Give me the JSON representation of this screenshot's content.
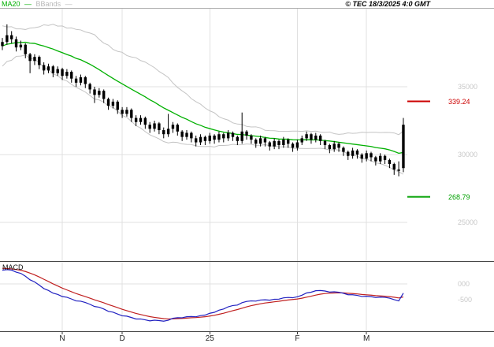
{
  "header": {
    "legend": {
      "ma20": "MA20",
      "bbands": "BBands",
      "dash": "—"
    },
    "copyright": "© TEC 18/3/2025 4:0 GMT"
  },
  "colors": {
    "ma20": "#00b000",
    "bbands": "#c4c4c4",
    "candle": "#000000",
    "macd": "#2020c0",
    "macd_signal": "#c02020",
    "grid": "#e0e0e0",
    "axis_text": "#c8c8c8",
    "resistance": "#cc0000",
    "support": "#00a000"
  },
  "chart_data": {
    "type": "candlestick",
    "title": "",
    "legend_entries": [
      "MA20",
      "BBands"
    ],
    "ylim": [
      244,
      408
    ],
    "price_panel": {
      "y_gridlines": [
        {
          "price": 350,
          "label": "35000"
        },
        {
          "price": 300,
          "label": "30000"
        },
        {
          "price": 250,
          "label": "25000"
        }
      ],
      "levels": [
        {
          "price": 339.24,
          "label": "339.24",
          "color": "#cc0000"
        },
        {
          "price": 268.79,
          "label": "268.79",
          "color": "#00a000"
        }
      ],
      "ma_period": 20,
      "band_mult": 2,
      "band_warmup_closes": [
        362,
        374,
        366,
        379,
        371,
        383,
        375,
        387,
        379,
        389,
        381,
        391,
        383,
        389,
        379,
        387,
        377,
        385,
        381
      ],
      "candles_ohlc": [
        [
          380,
          386,
          377,
          383
        ],
        [
          383,
          396,
          381,
          388
        ],
        [
          388,
          391,
          382,
          385
        ],
        [
          385,
          387,
          376,
          379
        ],
        [
          379,
          384,
          377,
          381
        ],
        [
          381,
          382,
          371,
          374
        ],
        [
          374,
          375,
          360,
          369
        ],
        [
          369,
          374,
          366,
          372
        ],
        [
          372,
          373,
          363,
          366
        ],
        [
          366,
          368,
          359,
          362
        ],
        [
          362,
          367,
          360,
          365
        ],
        [
          365,
          366,
          357,
          360
        ],
        [
          360,
          365,
          358,
          363
        ],
        [
          363,
          364,
          355,
          358
        ],
        [
          358,
          363,
          356,
          361
        ],
        [
          361,
          362,
          353,
          356
        ],
        [
          356,
          358,
          350,
          353
        ],
        [
          353,
          359,
          351,
          357
        ],
        [
          357,
          358,
          349,
          352
        ],
        [
          352,
          353,
          345,
          348
        ],
        [
          348,
          350,
          338,
          344
        ],
        [
          344,
          349,
          342,
          347
        ],
        [
          347,
          348,
          338,
          341
        ],
        [
          341,
          342,
          333,
          336
        ],
        [
          336,
          341,
          334,
          339
        ],
        [
          339,
          340,
          330,
          333
        ],
        [
          333,
          335,
          327,
          330
        ],
        [
          330,
          335,
          328,
          333
        ],
        [
          333,
          334,
          324,
          327
        ],
        [
          327,
          329,
          321,
          324
        ],
        [
          324,
          329,
          322,
          327
        ],
        [
          327,
          328,
          319,
          322
        ],
        [
          322,
          324,
          316,
          319
        ],
        [
          319,
          325,
          317,
          323
        ],
        [
          323,
          324,
          315,
          318
        ],
        [
          318,
          320,
          312,
          315
        ],
        [
          315,
          330,
          313,
          319
        ],
        [
          319,
          324,
          316,
          322
        ],
        [
          322,
          323,
          314,
          317
        ],
        [
          317,
          318,
          310,
          313
        ],
        [
          313,
          318,
          311,
          316
        ],
        [
          316,
          317,
          309,
          312
        ],
        [
          312,
          314,
          306,
          309
        ],
        [
          309,
          315,
          307,
          313
        ],
        [
          313,
          314,
          307,
          310
        ],
        [
          310,
          316,
          308,
          314
        ],
        [
          314,
          315,
          308,
          311
        ],
        [
          311,
          317,
          309,
          315
        ],
        [
          315,
          316,
          309,
          312
        ],
        [
          312,
          318,
          310,
          316
        ],
        [
          316,
          317,
          310,
          313
        ],
        [
          313,
          314,
          307,
          310
        ],
        [
          310,
          331,
          308,
          317
        ],
        [
          317,
          318,
          311,
          314
        ],
        [
          314,
          315,
          308,
          311
        ],
        [
          311,
          312,
          305,
          308
        ],
        [
          308,
          314,
          306,
          312
        ],
        [
          312,
          313,
          306,
          309
        ],
        [
          309,
          310,
          303,
          306
        ],
        [
          306,
          312,
          304,
          310
        ],
        [
          310,
          311,
          304,
          307
        ],
        [
          307,
          313,
          305,
          311
        ],
        [
          311,
          312,
          305,
          308
        ],
        [
          308,
          309,
          302,
          305
        ],
        [
          305,
          311,
          303,
          309
        ],
        [
          309,
          314,
          307,
          312
        ],
        [
          312,
          317,
          310,
          315
        ],
        [
          315,
          316,
          308,
          311
        ],
        [
          311,
          316,
          309,
          314
        ],
        [
          314,
          315,
          307,
          310
        ],
        [
          310,
          311,
          304,
          307
        ],
        [
          307,
          308,
          301,
          304
        ],
        [
          304,
          310,
          302,
          308
        ],
        [
          308,
          309,
          302,
          305
        ],
        [
          305,
          306,
          299,
          302
        ],
        [
          302,
          303,
          296,
          299
        ],
        [
          299,
          305,
          297,
          303
        ],
        [
          303,
          304,
          297,
          300
        ],
        [
          300,
          301,
          294,
          297
        ],
        [
          297,
          303,
          295,
          301
        ],
        [
          301,
          302,
          295,
          298
        ],
        [
          298,
          299,
          292,
          295
        ],
        [
          295,
          301,
          293,
          299
        ],
        [
          299,
          300,
          293,
          296
        ],
        [
          296,
          297,
          290,
          293
        ],
        [
          293,
          294,
          285,
          289
        ],
        [
          289,
          295,
          284,
          288
        ],
        [
          290,
          327,
          287,
          322
        ]
      ]
    },
    "macd_panel": {
      "label": "MACD",
      "fast": 12,
      "slow": 26,
      "signal": 9,
      "y_labels": [
        {
          "value": 0,
          "label": "000"
        },
        {
          "value": -5,
          "label": "-500"
        }
      ]
    },
    "x_ticks": [
      {
        "index": 13,
        "label": "N"
      },
      {
        "index": 26,
        "label": "D"
      },
      {
        "index": 45,
        "label": "25"
      },
      {
        "index": 64,
        "label": "F"
      },
      {
        "index": 79,
        "label": "M"
      }
    ]
  }
}
